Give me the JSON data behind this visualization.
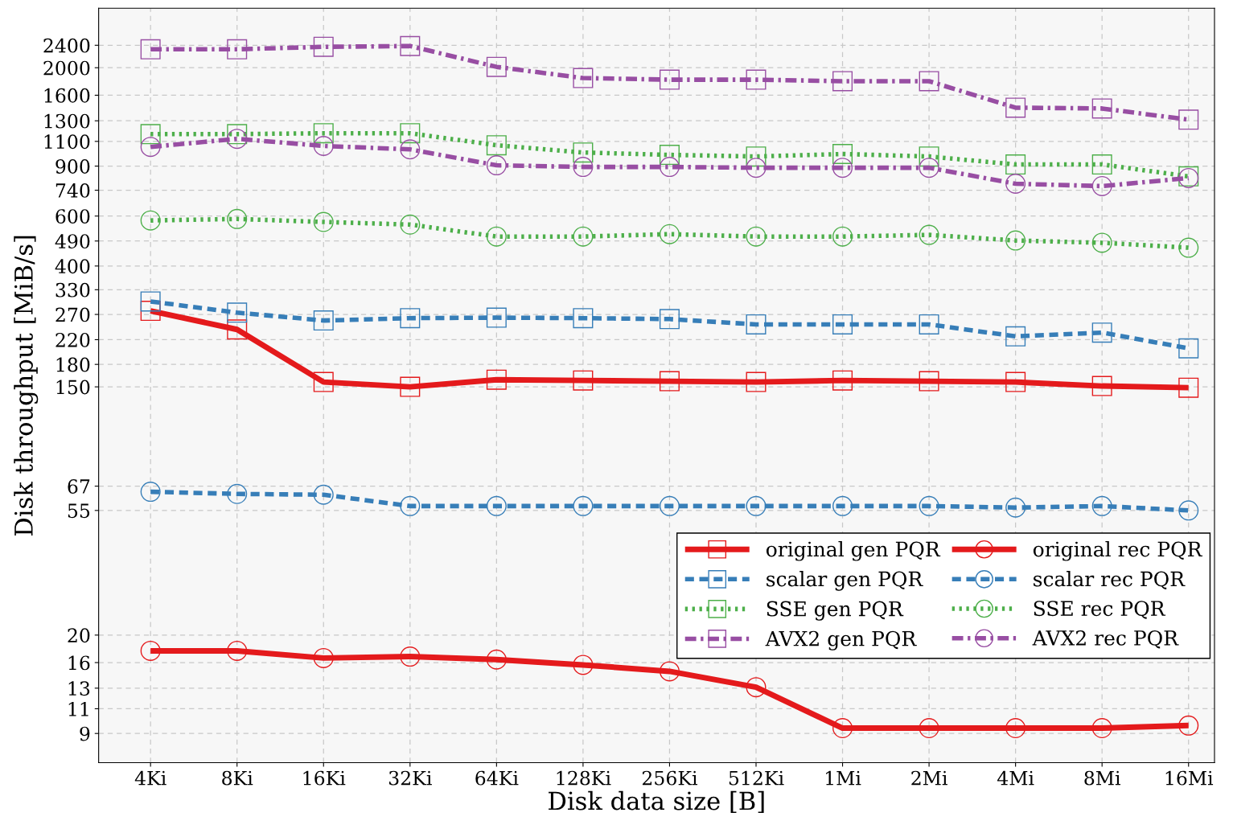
{
  "chart_data": {
    "type": "line",
    "xlabel": "Disk data size [B]",
    "ylabel": "Disk throughput [MiB/s]",
    "categories": [
      "4Ki",
      "8Ki",
      "16Ki",
      "32Ki",
      "64Ki",
      "128Ki",
      "256Ki",
      "512Ki",
      "1Mi",
      "2Mi",
      "4Mi",
      "8Mi",
      "16Mi"
    ],
    "log": "y",
    "ylim": [
      7.1,
      3240
    ],
    "yticks": [
      9,
      11,
      13,
      16,
      20,
      55,
      67,
      150,
      180,
      220,
      270,
      330,
      400,
      490,
      600,
      740,
      900,
      1100,
      1300,
      1600,
      2000,
      2400
    ],
    "grid": true,
    "legend": "bottom right",
    "series": [
      {
        "name": "original gen PQR",
        "color": "#e41a1c",
        "marker": "square",
        "line_style": "solid",
        "values": [
          278,
          239,
          156,
          150,
          159,
          158,
          157,
          156,
          158,
          157,
          156,
          151,
          149
        ]
      },
      {
        "name": "scalar gen PQR",
        "color": "#377eb8",
        "marker": "square",
        "line_style": "dashed",
        "values": [
          300,
          274,
          257,
          262,
          263,
          262,
          260,
          249,
          249,
          249,
          226,
          233,
          205
        ]
      },
      {
        "name": "SSE gen PQR",
        "color": "#4daf4a",
        "marker": "square",
        "line_style": "dotted",
        "values": [
          1167,
          1167,
          1175,
          1175,
          1066,
          1005,
          986,
          973,
          993,
          973,
          912,
          912,
          828
        ]
      },
      {
        "name": "AVX2 gen PQR",
        "color": "#984ea3",
        "marker": "square",
        "line_style": "dashdot",
        "values": [
          2323,
          2323,
          2370,
          2385,
          2014,
          1839,
          1815,
          1815,
          1793,
          1793,
          1446,
          1437,
          1312
        ]
      },
      {
        "name": "original rec PQR",
        "color": "#e41a1c",
        "marker": "circle",
        "line_style": "solid",
        "values": [
          17.6,
          17.6,
          16.6,
          16.8,
          16.4,
          15.7,
          14.9,
          13.1,
          9.4,
          9.4,
          9.4,
          9.4,
          9.6
        ]
      },
      {
        "name": "scalar rec PQR",
        "color": "#377eb8",
        "marker": "circle",
        "line_style": "dashed",
        "values": [
          64,
          62.9,
          62.5,
          57,
          57,
          57,
          57,
          57,
          57,
          57,
          56.3,
          57,
          55
        ]
      },
      {
        "name": "SSE rec PQR",
        "color": "#4daf4a",
        "marker": "circle",
        "line_style": "dotted",
        "values": [
          579,
          586,
          572,
          560,
          508,
          508,
          518,
          508,
          508,
          515,
          492,
          483,
          464
        ]
      },
      {
        "name": "AVX2 rec PQR",
        "color": "#984ea3",
        "marker": "circle",
        "line_style": "dashdot",
        "values": [
          1052,
          1123,
          1060,
          1031,
          906,
          894,
          894,
          888,
          888,
          888,
          780,
          765,
          817
        ]
      }
    ]
  }
}
